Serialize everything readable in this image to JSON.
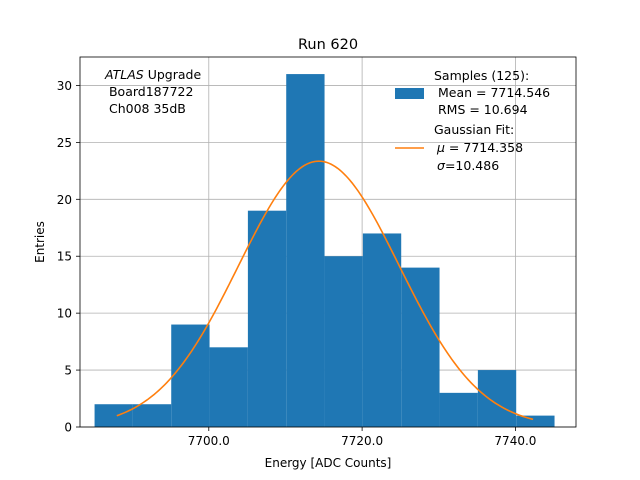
{
  "chart_data": {
    "type": "bar",
    "title": "Run 620",
    "xlabel": "Energy [ADC Counts]",
    "ylabel": "Entries",
    "xlim": [
      7683.2,
      7747.9
    ],
    "ylim": [
      0,
      32.5
    ],
    "grid": true,
    "xticks": [
      {
        "value": 7700,
        "label": "7700.0"
      },
      {
        "value": 7720,
        "label": "7720.0"
      },
      {
        "value": 7740,
        "label": "7740.0"
      }
    ],
    "yticks": [
      0,
      5,
      10,
      15,
      20,
      25,
      30
    ],
    "bin_edges": [
      7685.1,
      7690.1,
      7695.1,
      7700.1,
      7705.1,
      7710.1,
      7715.1,
      7720.1,
      7725.1,
      7730.1,
      7735.1,
      7740.1,
      7745.1
    ],
    "counts": [
      2,
      2,
      9,
      7,
      19,
      31,
      15,
      17,
      14,
      3,
      5,
      1
    ],
    "fit": {
      "mu": 7714.358,
      "sigma": 10.486,
      "amplitude": 23.35,
      "x_range": [
        7688.0,
        7742.3
      ]
    },
    "annotation": {
      "italic": "ATLAS",
      "rest": " Upgrade",
      "line2": " Board187722",
      "line3": " Ch008 35dB"
    },
    "legend": {
      "placement": "top-right",
      "hist_line1": "Samples (125):",
      "hist_line2": " Mean = 7714.546",
      "hist_line3": " RMS = 10.694",
      "fit_line1": "Gaussian Fit:",
      "fit_mu_symbol": "μ",
      "fit_line2_rest": " = 7714.358",
      "fit_sigma_symbol": "σ",
      "fit_line3_rest": "=10.486"
    },
    "colors": {
      "bar": "#1f77b4",
      "fit": "#ff7f0e",
      "grid": "#b0b0b0"
    }
  }
}
